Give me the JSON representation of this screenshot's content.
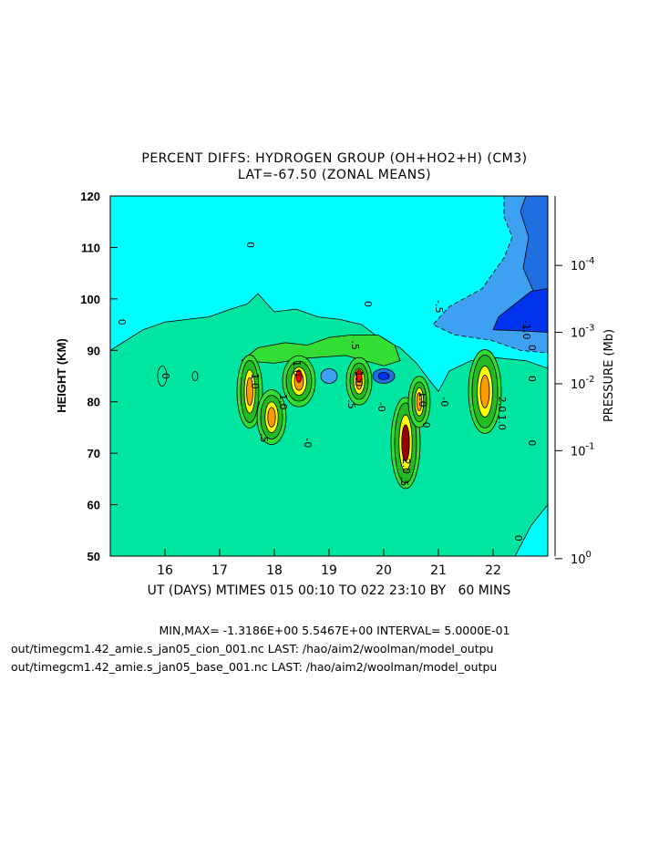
{
  "chart_data": {
    "type": "contour",
    "title_line1": "PERCENT DIFFS: HYDROGEN GROUP (OH+HO2+H) (CM3)",
    "title_line2": "LAT=-67.50 (ZONAL MEANS)",
    "xlabel": "UT (DAYS) MTIMES 015 00:10 TO 022 23:10 BY   60 MINS",
    "ylabel": "HEIGHT (KM)",
    "y2label": "PRESSURE (Mb)",
    "xlim": [
      15.0,
      23.0
    ],
    "ylim": [
      50,
      120
    ],
    "x_ticks": [
      "16",
      "17",
      "18",
      "19",
      "20",
      "21",
      "22"
    ],
    "x_tick_values": [
      16,
      17,
      18,
      19,
      20,
      21,
      22
    ],
    "y_ticks": [
      "50",
      "60",
      "70",
      "80",
      "90",
      "100",
      "110",
      "120"
    ],
    "y_tick_values": [
      50,
      60,
      70,
      80,
      90,
      100,
      110,
      120
    ],
    "y2_ticks": [
      {
        "base": "10",
        "exp": "0",
        "height": 49.5
      },
      {
        "base": "10",
        "exp": "-1",
        "height": 70.5
      },
      {
        "base": "10",
        "exp": "-2",
        "height": 83.5
      },
      {
        "base": "10",
        "exp": "-3",
        "height": 93.5
      },
      {
        "base": "10",
        "exp": "-4",
        "height": 106.5
      }
    ],
    "contour_interval": 0.5,
    "min": -1.3186,
    "max": 5.5467,
    "colors": {
      "neg_deep": "#0033ee",
      "neg_mid": "#1f6fe0",
      "neg_light": "#3ea0f0",
      "near_zero_neg": "#00ffff",
      "near_zero_pos": "#00e5a0",
      "pos_1": "#33dd33",
      "pos_2": "#22bb22",
      "pos_3": "#ffff00",
      "pos_4": "#ff9900",
      "pos_5": "#ff0000",
      "pos_6": "#990000"
    },
    "contour_labels": [
      {
        "text": "0",
        "x": 15.15,
        "y": 95.5
      },
      {
        "text": "0",
        "x": 17.5,
        "y": 110.5
      },
      {
        "text": "0",
        "x": 19.65,
        "y": 99
      },
      {
        "text": ".5",
        "x": 19.42,
        "y": 91
      },
      {
        "text": "-.5",
        "x": 20.95,
        "y": 98.5
      },
      {
        "text": "-1.0",
        "x": 22.55,
        "y": 94
      },
      {
        "text": "0",
        "x": 22.65,
        "y": 90.5
      },
      {
        "text": "0",
        "x": 22.65,
        "y": 84.5
      },
      {
        "text": "0",
        "x": 15.95,
        "y": 85
      },
      {
        "text": "1.0",
        "x": 17.58,
        "y": 84
      },
      {
        "text": "1.0",
        "x": 18.1,
        "y": 80
      },
      {
        "text": ".5",
        "x": 17.75,
        "y": 73
      },
      {
        "text": "-0",
        "x": 18.55,
        "y": 72
      },
      {
        "text": "1.0",
        "x": 18.35,
        "y": 86.5
      },
      {
        "text": "1.0",
        "x": 19.48,
        "y": 84.5
      },
      {
        "text": ".5",
        "x": 19.35,
        "y": 79.5
      },
      {
        "text": "-0",
        "x": 19.9,
        "y": 79
      },
      {
        "text": "-0",
        "x": 21.05,
        "y": 80
      },
      {
        "text": "1.0",
        "x": 20.65,
        "y": 80.5
      },
      {
        "text": "0",
        "x": 20.72,
        "y": 75.5
      },
      {
        "text": "2.0",
        "x": 20.35,
        "y": 67.5
      },
      {
        "text": ".5",
        "x": 20.32,
        "y": 64.5
      },
      {
        "text": "2.0",
        "x": 22.1,
        "y": 79.5
      },
      {
        "text": "1.0",
        "x": 22.1,
        "y": 76
      },
      {
        "text": "0",
        "x": 22.65,
        "y": 72
      },
      {
        "text": "0",
        "x": 22.4,
        "y": 53.5
      }
    ]
  },
  "footer": {
    "minmax": "MIN,MAX= -1.3186E+00  5.5467E+00 INTERVAL=  5.0000E-01",
    "file1": "out/timegcm1.42_amie.s_jan05_cion_001.nc LAST: /hao/aim2/woolman/model_outpu",
    "file2": "out/timegcm1.42_amie.s_jan05_base_001.nc LAST: /hao/aim2/woolman/model_outpu"
  }
}
